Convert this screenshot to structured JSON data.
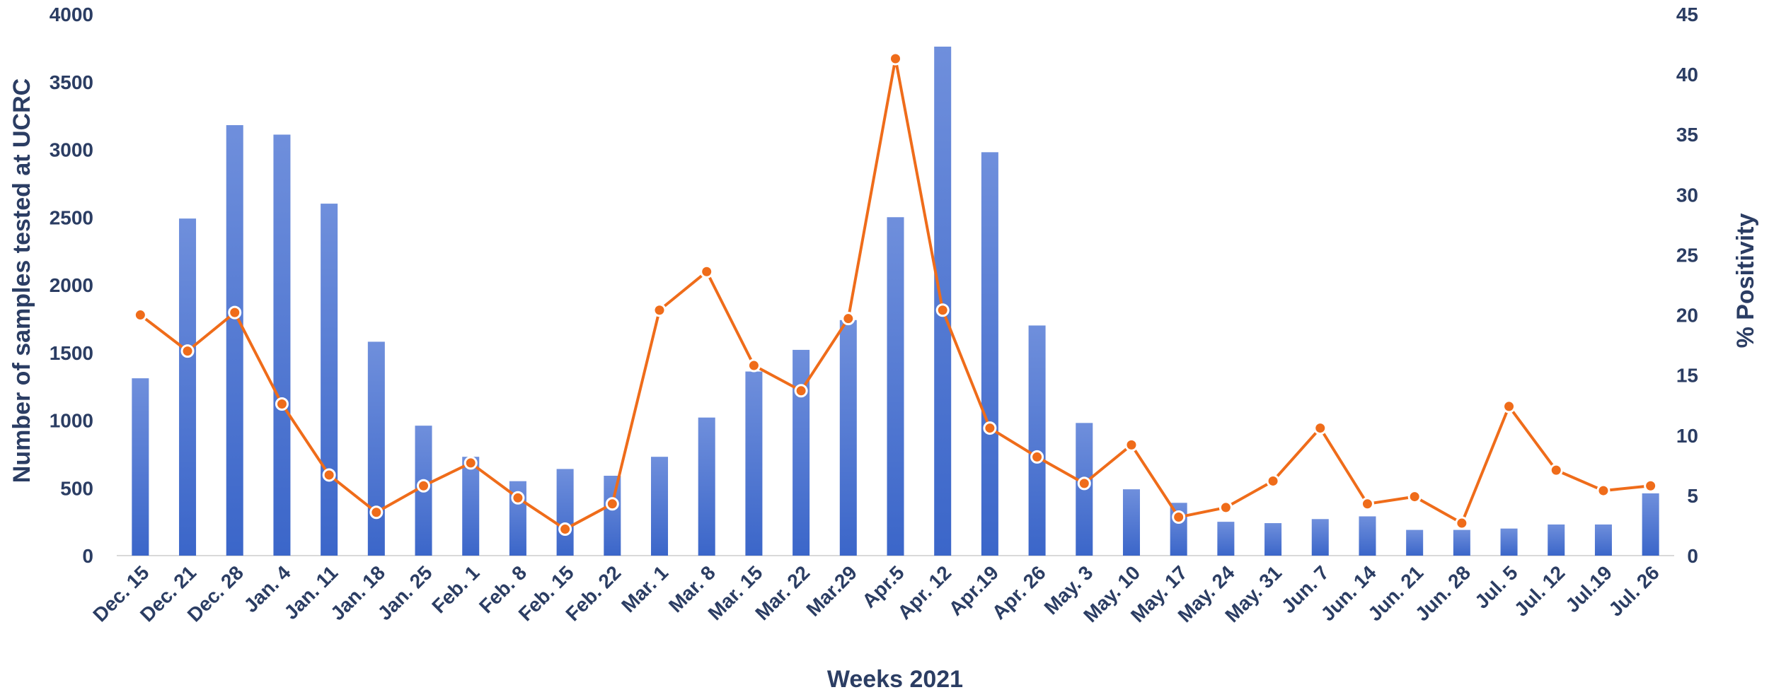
{
  "chart_data": {
    "type": "bar+line",
    "title": "",
    "xlabel": "Weeks 2021",
    "ylabel_left": "Number of samples tested at UCRC",
    "ylabel_right": "% Positivity",
    "ylim_left": [
      0,
      4000
    ],
    "ylim_right": [
      0,
      45
    ],
    "yticks_left": [
      "0",
      "500",
      "1000",
      "1500",
      "2000",
      "2500",
      "3000",
      "3500",
      "4000"
    ],
    "yticks_right": [
      "0",
      "5",
      "10",
      "15",
      "20",
      "25",
      "30",
      "35",
      "40",
      "45"
    ],
    "categories": [
      "Dec. 15",
      "Dec. 21",
      "Dec. 28",
      "Jan. 4",
      "Jan. 11",
      "Jan. 18",
      "Jan. 25",
      "Feb. 1",
      "Feb. 8",
      "Feb. 15",
      "Feb. 22",
      "Mar. 1",
      "Mar. 8",
      "Mar. 15",
      "Mar. 22",
      "Mar.29",
      "Apr.5",
      "Apr. 12",
      "Apr.19",
      "Apr. 26",
      "May. 3",
      "May. 10",
      "May. 17",
      "May. 24",
      "May. 31",
      "Jun. 7",
      "Jun. 14",
      "Jun. 21",
      "Jun. 28",
      "Jul. 5",
      "Jul. 12",
      "Jul.19",
      "Jul. 26"
    ],
    "bars": {
      "axis": "left",
      "color": "#3b66c9",
      "values": [
        1310,
        2490,
        3180,
        3110,
        2600,
        1580,
        960,
        730,
        550,
        640,
        590,
        730,
        1020,
        1360,
        1520,
        1740,
        2500,
        3760,
        2980,
        1700,
        980,
        490,
        390,
        250,
        240,
        270,
        290,
        190,
        190,
        200,
        230,
        230,
        460
      ]
    },
    "line": {
      "axis": "right",
      "color": "#ef6c1a",
      "values": [
        20.0,
        17.0,
        20.2,
        12.6,
        6.7,
        3.6,
        5.8,
        7.7,
        4.8,
        2.2,
        4.3,
        20.4,
        23.6,
        15.8,
        13.7,
        19.7,
        41.3,
        20.4,
        10.6,
        8.2,
        6.0,
        9.2,
        3.2,
        4.0,
        6.2,
        10.6,
        4.3,
        4.9,
        2.7,
        12.4,
        7.1,
        5.4,
        5.8
      ]
    }
  }
}
